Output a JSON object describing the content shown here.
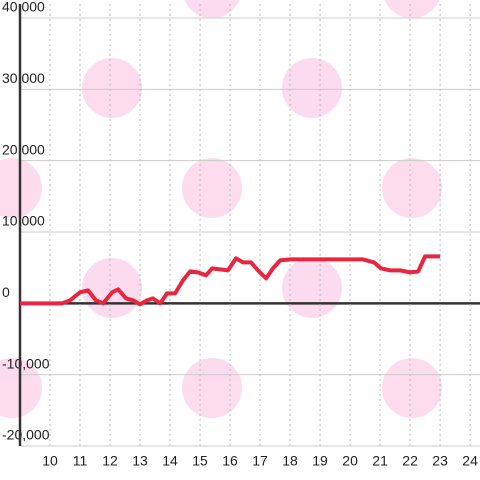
{
  "chart_data": {
    "type": "line",
    "x": [
      9.0,
      10.4,
      10.67,
      11.0,
      11.27,
      11.53,
      11.77,
      12.07,
      12.27,
      12.53,
      12.77,
      13.0,
      13.23,
      13.43,
      13.67,
      13.9,
      14.17,
      14.43,
      14.67,
      14.93,
      15.2,
      15.4,
      15.67,
      15.93,
      16.2,
      16.43,
      16.7,
      16.93,
      17.2,
      17.43,
      17.67,
      18.0,
      20.43,
      20.8,
      21.03,
      21.33,
      21.67,
      22.0,
      22.27,
      22.5,
      23.0
    ],
    "series": [
      {
        "color": "#e8263f",
        "values": [
          0,
          0,
          420,
          1540,
          1820,
          420,
          0,
          1540,
          1960,
          700,
          420,
          -140,
          420,
          700,
          0,
          1400,
          1400,
          3220,
          4480,
          4340,
          3920,
          4900,
          4760,
          4620,
          6300,
          5740,
          5740,
          4620,
          3500,
          4900,
          6020,
          6160,
          6160,
          5740,
          4900,
          4620,
          4620,
          4340,
          4480,
          6580,
          6580
        ]
      }
    ],
    "xlim": [
      9,
      24.33
    ],
    "xticks": [
      10,
      11,
      12,
      13,
      14,
      15,
      16,
      17,
      18,
      19,
      20,
      21,
      22,
      23,
      24
    ],
    "ylim": [
      -20000,
      42000
    ],
    "yticks": [
      {
        "value": 40000,
        "label": "40,000"
      },
      {
        "value": 30000,
        "label": "30,000"
      },
      {
        "value": 20000,
        "label": "20,000"
      },
      {
        "value": 10000,
        "label": "10,000"
      },
      0,
      {
        "value": -10000,
        "label": "-10,000"
      },
      {
        "value": -20000,
        "label": "-20,000"
      }
    ],
    "grid": true
  }
}
